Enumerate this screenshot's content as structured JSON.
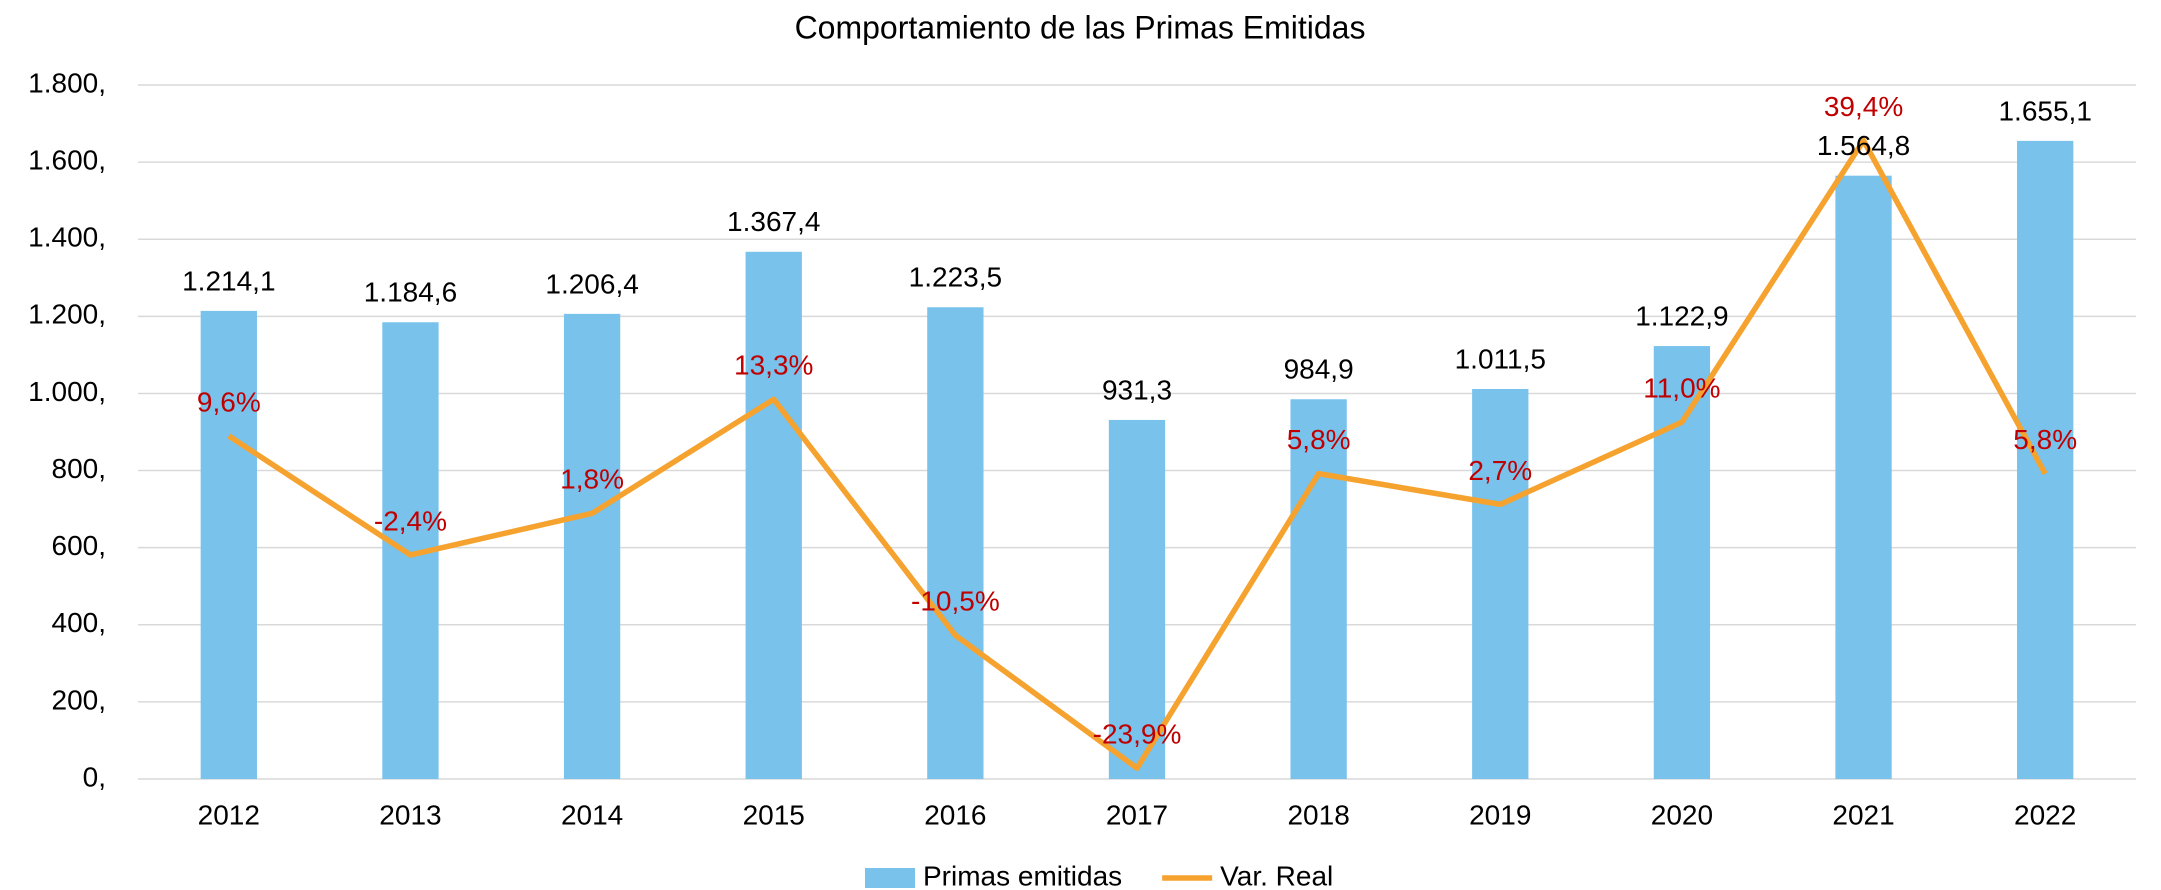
{
  "chart_data": {
    "type": "bar",
    "title": "Comportamiento de las Primas Emitidas",
    "categories": [
      "2012",
      "2013",
      "2014",
      "2015",
      "2016",
      "2017",
      "2018",
      "2019",
      "2020",
      "2021",
      "2022"
    ],
    "series": [
      {
        "name": "Primas emitidas",
        "type": "bar",
        "color": "#78c2ec",
        "values": [
          1214.1,
          1184.6,
          1206.4,
          1367.4,
          1223.5,
          931.3,
          984.9,
          1011.5,
          1122.9,
          1564.8,
          1655.1
        ],
        "value_labels": [
          "1.214,1",
          "1.184,6",
          "1.206,4",
          "1.367,4",
          "1.223,5",
          "931,3",
          "984,9",
          "1.011,5",
          "1.122,9",
          "1.564,8",
          "1.655,1"
        ],
        "label_color": "#000000"
      },
      {
        "name": "Var. Real",
        "type": "line",
        "axis": "y2",
        "color": "#f5a22f",
        "values": [
          9.6,
          -2.4,
          1.8,
          13.3,
          -10.5,
          -23.9,
          5.8,
          2.7,
          11.0,
          39.4,
          5.8
        ],
        "value_labels": [
          "9,6%",
          "-2,4%",
          "1,8%",
          "13,3%",
          "-10,5%",
          "-23,9%",
          "5,8%",
          "2,7%",
          "11,0%",
          "39,4%",
          "5,8%"
        ],
        "label_color": "#c00000"
      }
    ],
    "ylim": [
      0,
      1800
    ],
    "yticks": [
      {
        "value": 0,
        "label": "0,"
      },
      {
        "value": 200,
        "label": "200,"
      },
      {
        "value": 400,
        "label": "400,"
      },
      {
        "value": 600,
        "label": "600,"
      },
      {
        "value": 800,
        "label": "800,"
      },
      {
        "value": 1000,
        "label": "1.000,"
      },
      {
        "value": 1200,
        "label": "1.200,"
      },
      {
        "value": 1400,
        "label": "1.400,"
      },
      {
        "value": 1600,
        "label": "1.600,"
      },
      {
        "value": 1800,
        "label": "1.800,"
      }
    ],
    "y2lim": [
      -25,
      45
    ],
    "grid": true,
    "legend": "bottom"
  }
}
